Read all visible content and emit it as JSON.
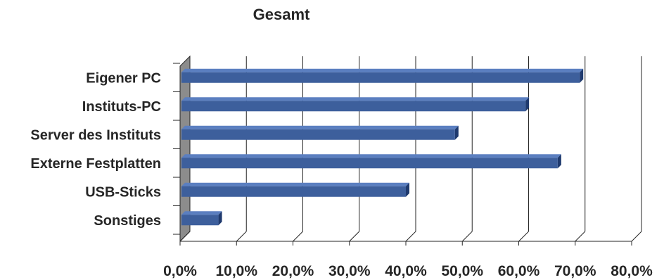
{
  "chart_data": {
    "type": "bar",
    "orientation": "horizontal",
    "title": "Gesamt",
    "xlabel": "",
    "ylabel": "",
    "categories": [
      "Eigener PC",
      "Instituts-PC",
      "Server des Instituts",
      "Externe Festplatten",
      "USB-Sticks",
      "Sonstiges"
    ],
    "values": [
      70.8,
      61.2,
      48.7,
      66.9,
      40.0,
      6.8
    ],
    "xlim": [
      0,
      80
    ],
    "x_ticks": [
      "0,0%",
      "10,0%",
      "20,0%",
      "30,0%",
      "40,0%",
      "50,0%",
      "60,0%",
      "70,0%",
      "80,0%"
    ],
    "grid": "vertical",
    "legend": "none",
    "style": "3d",
    "colors": {
      "bar": "#3d5f9c",
      "bar_top": "#5b7fc0",
      "bar_side": "#1f3a6e",
      "wall": "#8c8c8c",
      "grid": "#262626"
    }
  }
}
